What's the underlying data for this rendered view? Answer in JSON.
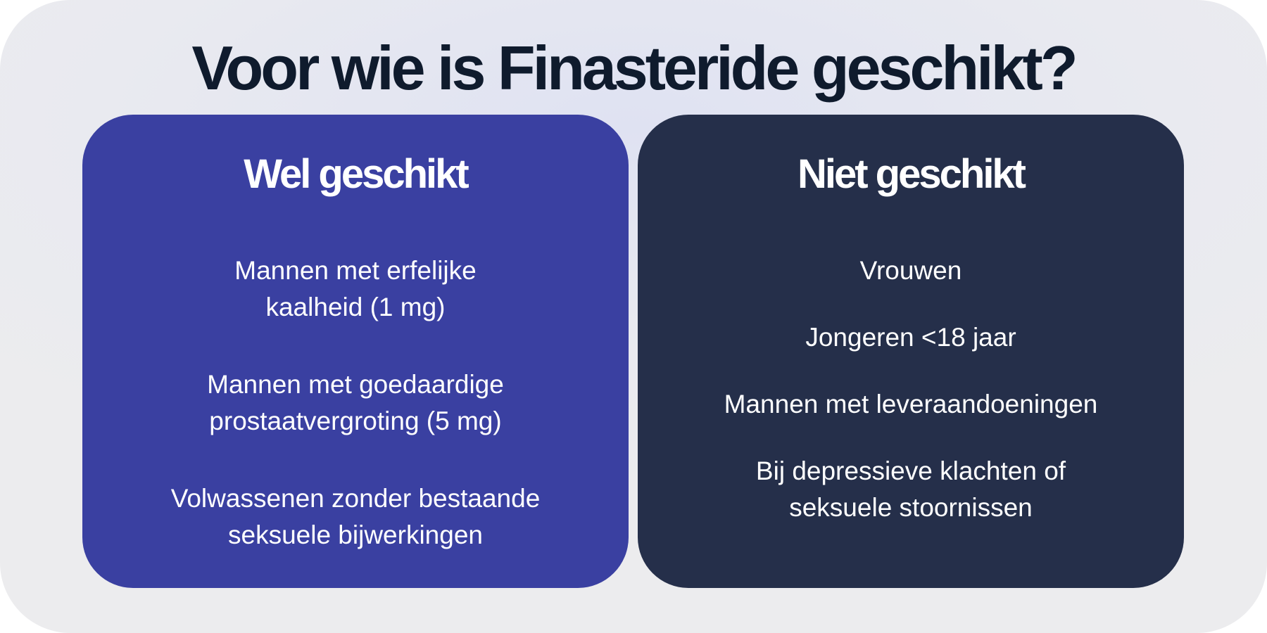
{
  "title": "Voor wie is Finasteride geschikt?",
  "colors": {
    "left_card": "#3a40a1",
    "right_card": "#252f4a",
    "title": "#0f1b2d"
  },
  "suitable": {
    "heading": "Wel geschikt",
    "items": [
      [
        "Mannen met erfelijke",
        "kaalheid (1 mg)"
      ],
      [
        "Mannen met goedaardige",
        "prostaatvergroting (5 mg)"
      ],
      [
        "Volwassenen zonder bestaande",
        "seksuele bijwerkingen"
      ]
    ]
  },
  "not_suitable": {
    "heading": "Niet geschikt",
    "items": [
      [
        "Vrouwen"
      ],
      [
        "Jongeren <18 jaar"
      ],
      [
        "Mannen met leveraandoeningen"
      ],
      [
        "Bij depressieve klachten of",
        "seksuele stoornissen"
      ]
    ]
  }
}
